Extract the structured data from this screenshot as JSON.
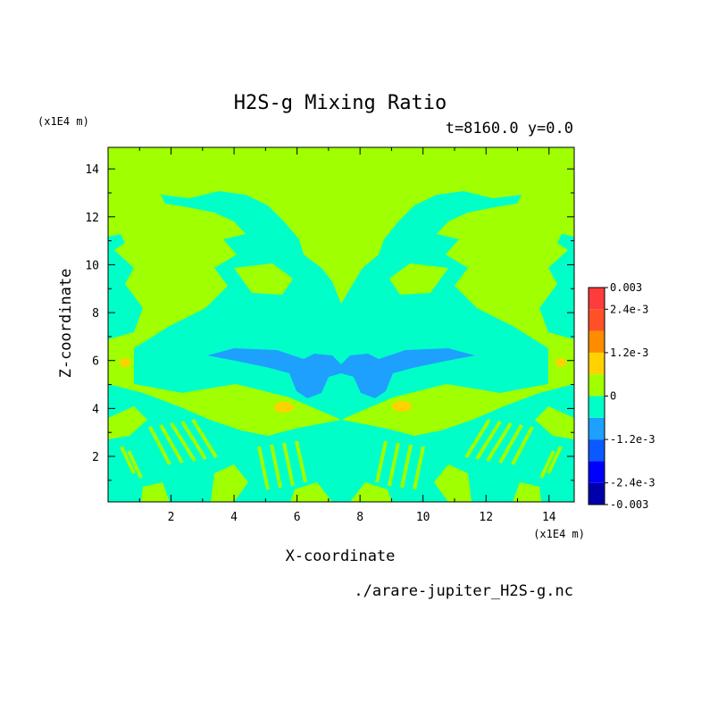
{
  "chart_data": {
    "type": "heatmap",
    "title": "H2S-g Mixing Ratio",
    "subtitle": "t=8160.0 y=0.0",
    "xlabel": "X-coordinate",
    "ylabel": "Z-coordinate",
    "x_unit": "(x1E4 m)",
    "y_unit": "(x1E4 m)",
    "xlim": [
      0,
      14.8
    ],
    "ylim": [
      0.1,
      14.9
    ],
    "x_ticks": [
      "2",
      "4",
      "6",
      "8",
      "10",
      "12",
      "14"
    ],
    "y_ticks": [
      "2",
      "4",
      "6",
      "8",
      "10",
      "12",
      "14"
    ],
    "colorbar": {
      "levels": [
        -0.003,
        -0.0024,
        -0.0018,
        -0.0012,
        -0.0006,
        0,
        0.0006,
        0.0012,
        0.0018,
        0.0024,
        0.003
      ],
      "labels": [
        "0.003",
        "2.4e-3",
        "1.2e-3",
        "0",
        "-1.2e-3",
        "-2.4e-3",
        "-0.003"
      ],
      "colors": [
        "#0000aa",
        "#0000ff",
        "#0a5aff",
        "#1ea0ff",
        "#00ffc8",
        "#a0ff00",
        "#ffd200",
        "#ff8c00",
        "#ff5028",
        "#ff3c3c"
      ]
    },
    "background_level": "0 to 6e-4",
    "regions": [
      {
        "name": "upper domain",
        "value_range": "0 to 6e-4",
        "z_range": [
          9,
          14.9
        ]
      },
      {
        "name": "central plume",
        "value_range": "-6e-4 to 0",
        "z_range": [
          4.8,
          9
        ]
      },
      {
        "name": "core minimum",
        "value_range": "-1.2e-3 to -6e-4",
        "x_range": [
          4.6,
          9.4
        ],
        "z_range": [
          4.4,
          6.2
        ]
      },
      {
        "name": "side maxima",
        "value_range": "6e-4 to 1.2e-3",
        "x": [
          5.5,
          9.3
        ],
        "z": 4.0
      },
      {
        "name": "edge maxima",
        "value_range": "6e-4 to 1.2e-3",
        "x": [
          0.5,
          14.4
        ],
        "z": 5.8
      },
      {
        "name": "lower layer",
        "value_range": "-6e-4 to 0",
        "z_range": [
          0.1,
          4.5
        ]
      }
    ]
  },
  "footer": {
    "filename": "./arare-jupiter_H2S-g.nc"
  }
}
